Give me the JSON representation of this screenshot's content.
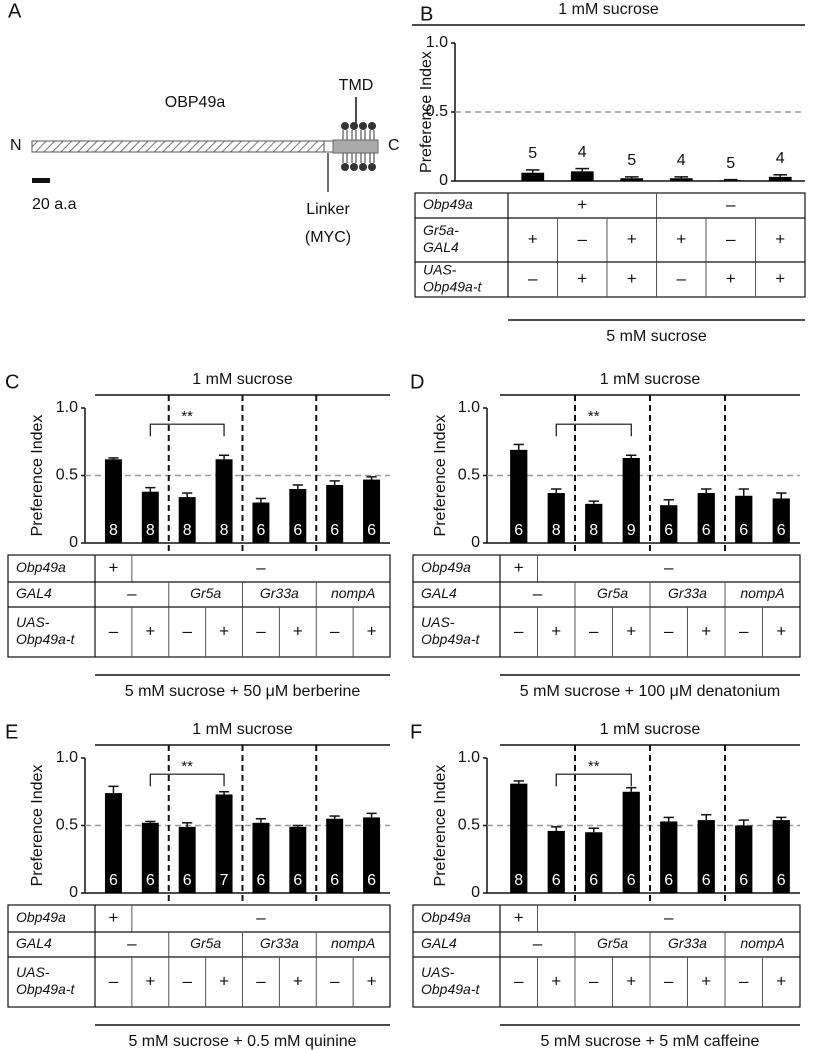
{
  "diagram": {
    "panel": "A",
    "protein": "OBP49a",
    "n_terminus": "N",
    "c_terminus": "C",
    "tmd": "TMD",
    "scale": "20 a.a",
    "linker": [
      "Linker",
      "(MYC)"
    ]
  },
  "chart_data": [
    {
      "panel": "B",
      "type": "bar",
      "top_label": "1 mM sucrose",
      "bottom_label": "5 mM sucrose",
      "ylabel": "Preference Index",
      "ylim": [
        0,
        1
      ],
      "yticks": [
        0,
        0.5,
        {
          "value": 1,
          "label": "1.0"
        }
      ],
      "reference_line": 0.5,
      "color": "#000000",
      "values": [
        0.06,
        0.07,
        0.02,
        0.02,
        0.005,
        0.03
      ],
      "errors": [
        0.02,
        0.02,
        0.01,
        0.01,
        0.005,
        0.015
      ],
      "n": [
        5,
        4,
        5,
        4,
        5,
        4
      ],
      "group_dividers": false,
      "table": [
        {
          "label": [
            "Obp49a"
          ],
          "cells": [
            "+",
            null,
            null,
            "–",
            null,
            null
          ]
        },
        {
          "label": [
            "Gr5a-",
            "GAL4"
          ],
          "cells": [
            "+",
            "–",
            "+",
            "+",
            "–",
            "+"
          ]
        },
        {
          "label": [
            "UAS-",
            "Obp49a-t"
          ],
          "cells": [
            "–",
            "+",
            "+",
            "–",
            "+",
            "+"
          ]
        }
      ]
    },
    {
      "panel": "C",
      "type": "bar",
      "top_label": "1 mM sucrose",
      "bottom_label": "5 mM sucrose + 50 μM berberine",
      "ylabel": "Preference Index",
      "ylim": [
        0,
        1
      ],
      "yticks": [
        0,
        0.5,
        {
          "value": 1,
          "label": "1.0"
        }
      ],
      "reference_line": 0.5,
      "color": "#000000",
      "values": [
        0.62,
        0.38,
        0.34,
        0.62,
        0.3,
        0.4,
        0.43,
        0.47
      ],
      "errors": [
        0.01,
        0.03,
        0.03,
        0.03,
        0.03,
        0.03,
        0.03,
        0.02
      ],
      "n": [
        8,
        8,
        8,
        8,
        6,
        6,
        6,
        6
      ],
      "significance": "**",
      "group_dividers": true,
      "table": [
        {
          "label": [
            "Obp49a"
          ],
          "cells": [
            "+",
            "–",
            null,
            null,
            null,
            null,
            null,
            null
          ]
        },
        {
          "label": [
            "GAL4"
          ],
          "cells": [
            "–",
            null,
            "Gr5a",
            null,
            "Gr33a",
            null,
            "nompA",
            null
          ]
        },
        {
          "label": [
            "UAS-",
            "Obp49a-t"
          ],
          "cells": [
            "–",
            "+",
            "–",
            "+",
            "–",
            "+",
            "–",
            "+"
          ]
        }
      ]
    },
    {
      "panel": "D",
      "type": "bar",
      "top_label": "1 mM sucrose",
      "bottom_label": "5 mM sucrose + 100 μM denatonium",
      "ylabel": "Preference Index",
      "ylim": [
        0,
        1
      ],
      "yticks": [
        0,
        0.5,
        {
          "value": 1,
          "label": "1.0"
        }
      ],
      "reference_line": 0.5,
      "color": "#000000",
      "values": [
        0.69,
        0.37,
        0.29,
        0.63,
        0.28,
        0.37,
        0.35,
        0.33
      ],
      "errors": [
        0.04,
        0.03,
        0.02,
        0.02,
        0.04,
        0.03,
        0.05,
        0.04
      ],
      "n": [
        6,
        8,
        8,
        9,
        6,
        6,
        6,
        6
      ],
      "significance": "**",
      "group_dividers": true,
      "table": [
        {
          "label": [
            "Obp49a"
          ],
          "cells": [
            "+",
            "–",
            null,
            null,
            null,
            null,
            null,
            null
          ]
        },
        {
          "label": [
            "GAL4"
          ],
          "cells": [
            "–",
            null,
            "Gr5a",
            null,
            "Gr33a",
            null,
            "nompA",
            null
          ]
        },
        {
          "label": [
            "UAS-",
            "Obp49a-t"
          ],
          "cells": [
            "–",
            "+",
            "–",
            "+",
            "–",
            "+",
            "–",
            "+"
          ]
        }
      ]
    },
    {
      "panel": "E",
      "type": "bar",
      "top_label": "1 mM sucrose",
      "bottom_label": "5 mM sucrose + 0.5 mM quinine",
      "ylabel": "Preference Index",
      "ylim": [
        0,
        1
      ],
      "yticks": [
        0,
        0.5,
        {
          "value": 1,
          "label": "1.0"
        }
      ],
      "reference_line": 0.5,
      "color": "#000000",
      "values": [
        0.74,
        0.52,
        0.49,
        0.73,
        0.52,
        0.49,
        0.55,
        0.56
      ],
      "errors": [
        0.05,
        0.01,
        0.03,
        0.02,
        0.03,
        0.01,
        0.02,
        0.03
      ],
      "n": [
        6,
        6,
        6,
        7,
        6,
        6,
        6,
        6
      ],
      "significance": "**",
      "group_dividers": true,
      "table": [
        {
          "label": [
            "Obp49a"
          ],
          "cells": [
            "+",
            "–",
            null,
            null,
            null,
            null,
            null,
            null
          ]
        },
        {
          "label": [
            "GAL4"
          ],
          "cells": [
            "–",
            null,
            "Gr5a",
            null,
            "Gr33a",
            null,
            "nompA",
            null
          ]
        },
        {
          "label": [
            "UAS-",
            "Obp49a-t"
          ],
          "cells": [
            "–",
            "+",
            "–",
            "+",
            "–",
            "+",
            "–",
            "+"
          ]
        }
      ]
    },
    {
      "panel": "F",
      "type": "bar",
      "top_label": "1 mM sucrose",
      "bottom_label": "5 mM sucrose + 5 mM caffeine",
      "ylabel": "Preference Index",
      "ylim": [
        0,
        1
      ],
      "yticks": [
        0,
        0.5,
        {
          "value": 1,
          "label": "1.0"
        }
      ],
      "reference_line": 0.5,
      "color": "#000000",
      "values": [
        0.81,
        0.46,
        0.45,
        0.75,
        0.53,
        0.54,
        0.5,
        0.54
      ],
      "errors": [
        0.02,
        0.03,
        0.03,
        0.03,
        0.03,
        0.04,
        0.04,
        0.02
      ],
      "n": [
        8,
        6,
        6,
        6,
        6,
        6,
        6,
        6
      ],
      "significance": "**",
      "group_dividers": true,
      "table": [
        {
          "label": [
            "Obp49a"
          ],
          "cells": [
            "+",
            "–",
            null,
            null,
            null,
            null,
            null,
            null
          ]
        },
        {
          "label": [
            "GAL4"
          ],
          "cells": [
            "–",
            null,
            "Gr5a",
            null,
            "Gr33a",
            null,
            "nompA",
            null
          ]
        },
        {
          "label": [
            "UAS-",
            "Obp49a-t"
          ],
          "cells": [
            "–",
            "+",
            "–",
            "+",
            "–",
            "+",
            "–",
            "+"
          ]
        }
      ]
    }
  ]
}
